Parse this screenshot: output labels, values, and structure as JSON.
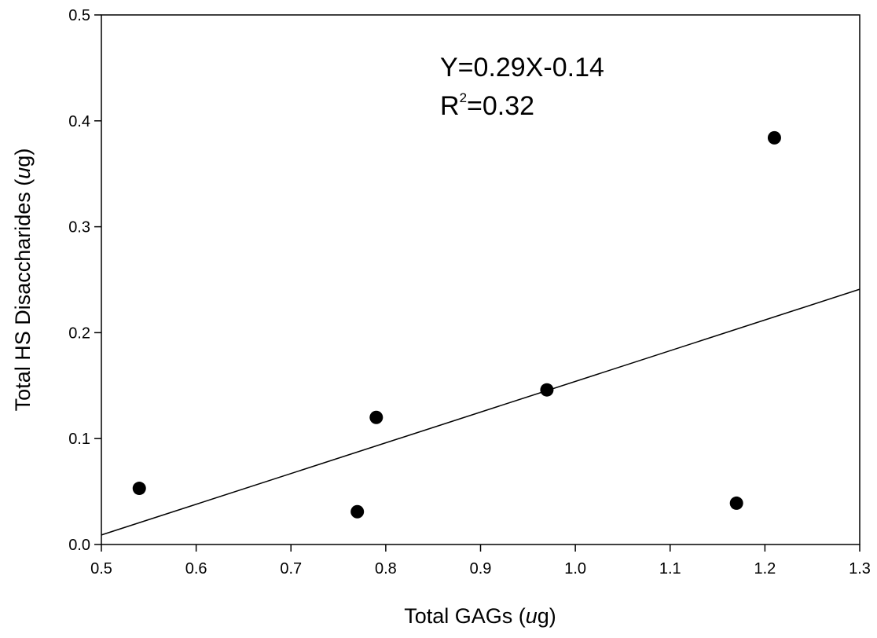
{
  "chart_data": {
    "type": "scatter",
    "title": "",
    "xlabel_main": "Total GAGs (",
    "xlabel_unit": "u",
    "xlabel_tail": "g)",
    "ylabel_main": "Total HS Disaccharides (",
    "ylabel_unit": "u",
    "ylabel_tail": "g)",
    "xlim": [
      0.5,
      1.3
    ],
    "ylim": [
      0.0,
      0.5
    ],
    "x_ticks": [
      "0.5",
      "0.6",
      "0.7",
      "0.8",
      "0.9",
      "1.0",
      "1.1",
      "1.2",
      "1.3"
    ],
    "y_ticks": [
      "0.0",
      "0.1",
      "0.2",
      "0.3",
      "0.4",
      "0.5"
    ],
    "points": [
      {
        "x": 0.54,
        "y": 0.053
      },
      {
        "x": 0.77,
        "y": 0.031
      },
      {
        "x": 0.79,
        "y": 0.12
      },
      {
        "x": 0.97,
        "y": 0.146
      },
      {
        "x": 1.17,
        "y": 0.039
      },
      {
        "x": 1.21,
        "y": 0.384
      }
    ],
    "regression": {
      "slope": 0.29,
      "intercept": -0.136
    },
    "annotation": {
      "equation": "Y=0.29X-0.14",
      "r2_prefix": "R",
      "r2_sup": "2",
      "r2_value": "=0.32"
    },
    "grid": false,
    "legend": "none"
  }
}
